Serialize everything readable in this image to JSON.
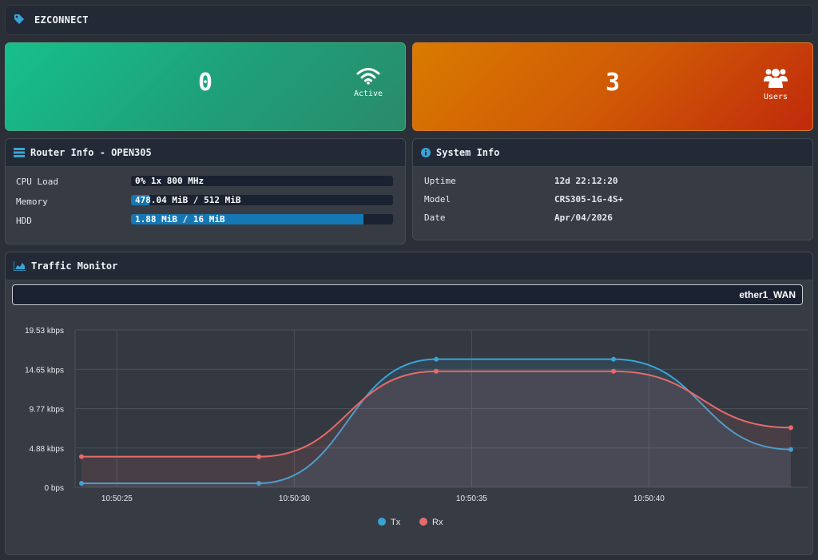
{
  "app": {
    "title": "EZCONNECT"
  },
  "cards": {
    "active": {
      "value": "0",
      "label": "Active",
      "color": "#16c08b"
    },
    "users": {
      "value": "3",
      "label": "Users",
      "color": "#d97b00"
    }
  },
  "router_info": {
    "title": "Router Info - OPEN305",
    "rows": [
      {
        "label": "CPU Load",
        "value": "0% 1x 800 MHz",
        "fraction": 0.0
      },
      {
        "label": "Memory",
        "value": "478.04 MiB / 512 MiB",
        "fraction": 0.07
      },
      {
        "label": "HDD",
        "value": "1.88 MiB / 16 MiB",
        "fraction": 0.886
      }
    ]
  },
  "system_info": {
    "title": "System Info",
    "rows": [
      {
        "label": "Uptime",
        "value": "12d 22:12:20"
      },
      {
        "label": "Model",
        "value": "CRS305-1G-4S+"
      },
      {
        "label": "Date",
        "value": "Apr/04/2026"
      }
    ]
  },
  "traffic": {
    "title": "Traffic Monitor",
    "interface": "ether1_WAN"
  },
  "chart_data": {
    "type": "line",
    "x": [
      "10:50:24",
      "10:50:29",
      "10:50:34",
      "10:50:39",
      "10:50:44"
    ],
    "xticks": [
      "10:50:25",
      "10:50:30",
      "10:50:35",
      "10:50:40"
    ],
    "yticks": [
      "0 bps",
      "4.88 kbps",
      "9.77 kbps",
      "14.65 kbps",
      "19.53 kbps"
    ],
    "ylim": [
      0,
      19.53
    ],
    "series": [
      {
        "name": "Tx",
        "color": "#3aa3d6",
        "values": [
          0.5,
          0.5,
          15.9,
          15.9,
          4.7
        ]
      },
      {
        "name": "Rx",
        "color": "#e86a6a",
        "values": [
          3.8,
          3.8,
          14.4,
          14.4,
          7.4
        ]
      }
    ],
    "legend": "bottom",
    "grid": true
  }
}
